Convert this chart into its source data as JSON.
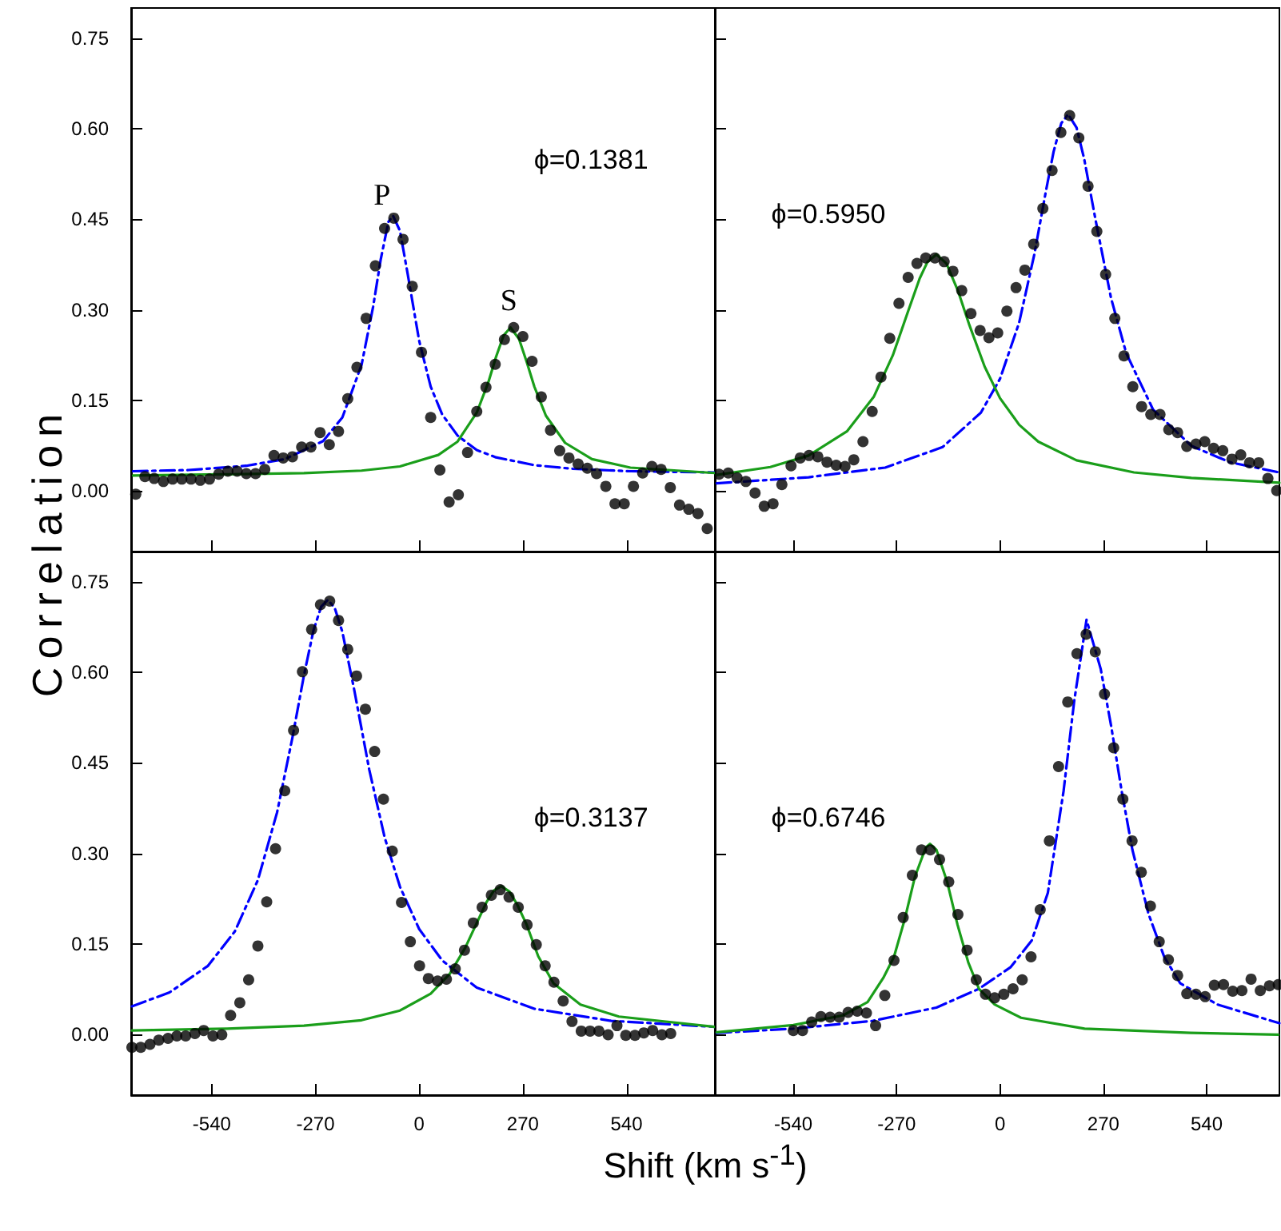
{
  "chart_data": [
    {
      "type": "line",
      "ylabel": "Correlation",
      "xlim": [
        -750,
        770
      ],
      "ylim": [
        -0.1,
        0.8
      ],
      "xticks": [
        -540,
        -270,
        0,
        270,
        540
      ],
      "yticks": [
        {
          "value": 0,
          "label": "0.00"
        },
        {
          "value": 0.15,
          "label": "0.15"
        },
        {
          "value": 0.3,
          "label": "0.30"
        },
        {
          "value": 0.45,
          "label": "0.45"
        },
        {
          "value": 0.6,
          "label": "0.60"
        },
        {
          "value": 0.75,
          "label": "0.75"
        }
      ],
      "tick_labels": "y",
      "annotations": [
        "ϕ=0.1381",
        "P",
        "S"
      ],
      "series": [
        {
          "type": "scatter",
          "marker": "circle",
          "color": "#000000",
          "x": [
            -738,
            -714,
            -690,
            -666,
            -642,
            -618,
            -594,
            -570,
            -546,
            -522,
            -498,
            -474,
            -450,
            -426,
            -402,
            -378,
            -354,
            -330,
            -306,
            -282,
            -258,
            -234,
            -210,
            -186,
            -162,
            -138,
            -114,
            -90,
            -66,
            -42,
            -18,
            6,
            30,
            54,
            78,
            102,
            126,
            150,
            174,
            198,
            222,
            246,
            270,
            294,
            318,
            342,
            366,
            390,
            414,
            438,
            462,
            486,
            510,
            534,
            558,
            582,
            606,
            630,
            654,
            678,
            702,
            726,
            750
          ],
          "values": [
            -0.005,
            0.024,
            0.021,
            0.016,
            0.02,
            0.02,
            0.02,
            0.018,
            0.02,
            0.028,
            0.033,
            0.033,
            0.029,
            0.029,
            0.036,
            0.059,
            0.055,
            0.057,
            0.073,
            0.073,
            0.097,
            0.077,
            0.099,
            0.153,
            0.205,
            0.286,
            0.373,
            0.435,
            0.452,
            0.417,
            0.339,
            0.23,
            0.122,
            0.035,
            -0.018,
            -0.006,
            0.064,
            0.132,
            0.172,
            0.21,
            0.251,
            0.271,
            0.256,
            0.215,
            0.156,
            0.101,
            0.067,
            0.055,
            0.045,
            0.038,
            0.029,
            0.008,
            -0.021,
            -0.021,
            0.008,
            0.03,
            0.041,
            0.036,
            0.006,
            -0.023,
            -0.03,
            -0.037,
            -0.062
          ]
        },
        {
          "type": "line",
          "marker": "none",
          "line_style": "dashdot",
          "color": "#0000ff",
          "x": [
            -745,
            -600,
            -450,
            -350,
            -250,
            -200,
            -150,
            -120,
            -100,
            -80,
            -68,
            -50,
            -30,
            0,
            30,
            60,
            100,
            150,
            200,
            300,
            400,
            550,
            770
          ],
          "values": [
            0.033,
            0.035,
            0.042,
            0.053,
            0.083,
            0.122,
            0.209,
            0.305,
            0.384,
            0.446,
            0.456,
            0.431,
            0.36,
            0.249,
            0.173,
            0.127,
            0.092,
            0.068,
            0.056,
            0.043,
            0.037,
            0.033,
            0.031
          ]
        },
        {
          "type": "line",
          "marker": "none",
          "line_style": "solid",
          "color": "#1a9e1a",
          "x": [
            -745,
            -500,
            -300,
            -150,
            -50,
            50,
            100,
            150,
            180,
            200,
            220,
            238,
            260,
            280,
            300,
            330,
            380,
            450,
            550,
            770
          ],
          "values": [
            0.026,
            0.028,
            0.03,
            0.034,
            0.041,
            0.06,
            0.082,
            0.13,
            0.18,
            0.222,
            0.258,
            0.271,
            0.252,
            0.214,
            0.173,
            0.125,
            0.08,
            0.053,
            0.039,
            0.03
          ]
        }
      ]
    },
    {
      "type": "line",
      "xlim": [
        -745,
        730
      ],
      "ylim": [
        -0.1,
        0.8
      ],
      "xticks": [
        -540,
        -270,
        0,
        270,
        540
      ],
      "yticks": [
        {
          "value": 0,
          "label": null
        },
        {
          "value": 0.15,
          "label": null
        },
        {
          "value": 0.3,
          "label": null
        },
        {
          "value": 0.45,
          "label": null
        },
        {
          "value": 0.6,
          "label": null
        },
        {
          "value": 0.75,
          "label": null
        }
      ],
      "tick_labels": false,
      "annotations": [
        "ϕ=0.5950"
      ],
      "series": [
        {
          "type": "scatter",
          "marker": "circle",
          "color": "#000000",
          "x": [
            -734,
            -710,
            -687,
            -664,
            -640,
            -616,
            -593,
            -570,
            -546,
            -522,
            -499,
            -476,
            -452,
            -428,
            -405,
            -382,
            -358,
            -334,
            -311,
            -288,
            -264,
            -240,
            -217,
            -194,
            -170,
            -146,
            -123,
            -100,
            -76,
            -52,
            -29,
            -6,
            18,
            42,
            65,
            88,
            112,
            136,
            159,
            182,
            206,
            230,
            253,
            276,
            300,
            324,
            347,
            370,
            394,
            418,
            441,
            464,
            488,
            512,
            535,
            558,
            582,
            606,
            629,
            652,
            676,
            700,
            723
          ],
          "values": [
            0.028,
            0.03,
            0.022,
            0.016,
            -0.003,
            -0.025,
            -0.021,
            0.011,
            0.042,
            0.055,
            0.059,
            0.057,
            0.048,
            0.043,
            0.041,
            0.052,
            0.082,
            0.132,
            0.189,
            0.253,
            0.311,
            0.354,
            0.377,
            0.386,
            0.386,
            0.38,
            0.364,
            0.332,
            0.294,
            0.266,
            0.254,
            0.262,
            0.298,
            0.337,
            0.366,
            0.409,
            0.468,
            0.531,
            0.594,
            0.622,
            0.585,
            0.505,
            0.43,
            0.359,
            0.286,
            0.224,
            0.173,
            0.14,
            0.127,
            0.127,
            0.102,
            0.097,
            0.074,
            0.078,
            0.082,
            0.071,
            0.067,
            0.053,
            0.06,
            0.047,
            0.047,
            0.021,
            0.001
          ]
        },
        {
          "type": "line",
          "marker": "none",
          "line_style": "dashdot",
          "color": "#0000ff",
          "x": [
            -740,
            -500,
            -300,
            -150,
            -50,
            0,
            50,
            90,
            120,
            140,
            160,
            178,
            200,
            220,
            250,
            290,
            330,
            400,
            500,
            600,
            730
          ],
          "values": [
            0.013,
            0.023,
            0.039,
            0.073,
            0.13,
            0.186,
            0.279,
            0.393,
            0.497,
            0.562,
            0.609,
            0.624,
            0.602,
            0.55,
            0.448,
            0.32,
            0.228,
            0.135,
            0.075,
            0.048,
            0.031
          ]
        },
        {
          "type": "line",
          "marker": "none",
          "line_style": "solid",
          "color": "#1a9e1a",
          "x": [
            -740,
            -600,
            -500,
            -400,
            -330,
            -280,
            -240,
            -210,
            -190,
            -166,
            -140,
            -110,
            -80,
            -40,
            0,
            50,
            100,
            200,
            350,
            500,
            730
          ],
          "values": [
            0.027,
            0.04,
            0.059,
            0.099,
            0.156,
            0.225,
            0.298,
            0.352,
            0.379,
            0.392,
            0.377,
            0.332,
            0.275,
            0.206,
            0.154,
            0.11,
            0.082,
            0.051,
            0.031,
            0.022,
            0.014
          ]
        }
      ]
    },
    {
      "type": "line",
      "xlabel": "Shift (km s$^{-1}$)",
      "xlim": [
        -750,
        770
      ],
      "ylim": [
        -0.1,
        0.8
      ],
      "xticks": [
        -540,
        -270,
        0,
        270,
        540
      ],
      "yticks": [
        {
          "value": 0,
          "label": "0.00"
        },
        {
          "value": 0.15,
          "label": "0.15"
        },
        {
          "value": 0.3,
          "label": "0.30"
        },
        {
          "value": 0.45,
          "label": "0.45"
        },
        {
          "value": 0.6,
          "label": "0.60"
        },
        {
          "value": 0.75,
          "label": "0.75"
        }
      ],
      "annotations": [
        "ϕ=0.3137"
      ],
      "series": [
        {
          "type": "scatter",
          "marker": "circle",
          "color": "#000000",
          "x": [
            -748,
            -725,
            -701,
            -678,
            -654,
            -631,
            -608,
            -584,
            -561,
            -537,
            -514,
            -491,
            -467,
            -444,
            -420,
            -397,
            -374,
            -350,
            -327,
            -304,
            -280,
            -257,
            -233,
            -210,
            -186,
            -163,
            -140,
            -116,
            -93,
            -70,
            -46,
            -23,
            1,
            24,
            48,
            71,
            94,
            118,
            141,
            164,
            188,
            211,
            234,
            258,
            281,
            305,
            328,
            351,
            375,
            398,
            422,
            445,
            468,
            492,
            515,
            538,
            562,
            585,
            608,
            632,
            655
          ],
          "values": [
            -0.021,
            -0.021,
            -0.016,
            -0.009,
            -0.006,
            -0.002,
            -0.002,
            0.002,
            0.007,
            -0.002,
            0.0,
            0.032,
            0.053,
            0.091,
            0.147,
            0.22,
            0.308,
            0.404,
            0.504,
            0.601,
            0.671,
            0.712,
            0.718,
            0.686,
            0.638,
            0.594,
            0.539,
            0.469,
            0.39,
            0.304,
            0.219,
            0.154,
            0.114,
            0.093,
            0.089,
            0.092,
            0.109,
            0.14,
            0.185,
            0.211,
            0.231,
            0.24,
            0.228,
            0.211,
            0.182,
            0.149,
            0.114,
            0.087,
            0.056,
            0.022,
            0.006,
            0.006,
            0.006,
            0.0,
            0.015,
            -0.001,
            -0.001,
            0.003,
            0.007,
            0.0,
            0.002
          ]
        },
        {
          "type": "line",
          "marker": "none",
          "line_style": "dashdot",
          "color": "#0000ff",
          "x": [
            -748,
            -650,
            -550,
            -480,
            -420,
            -370,
            -330,
            -300,
            -275,
            -255,
            -238,
            -220,
            -200,
            -170,
            -130,
            -90,
            -50,
            0,
            60,
            150,
            300,
            500,
            770
          ],
          "values": [
            0.047,
            0.07,
            0.114,
            0.171,
            0.256,
            0.368,
            0.492,
            0.595,
            0.67,
            0.709,
            0.72,
            0.707,
            0.667,
            0.574,
            0.439,
            0.327,
            0.245,
            0.175,
            0.123,
            0.078,
            0.043,
            0.023,
            0.013
          ]
        },
        {
          "type": "line",
          "marker": "none",
          "line_style": "solid",
          "color": "#1a9e1a",
          "x": [
            -748,
            -500,
            -300,
            -150,
            -50,
            30,
            80,
            120,
            150,
            175,
            195,
            214,
            235,
            255,
            280,
            310,
            350,
            420,
            520,
            770
          ],
          "values": [
            0.007,
            0.01,
            0.015,
            0.024,
            0.04,
            0.068,
            0.101,
            0.144,
            0.185,
            0.219,
            0.239,
            0.246,
            0.237,
            0.216,
            0.182,
            0.13,
            0.085,
            0.05,
            0.03,
            0.013
          ]
        }
      ]
    },
    {
      "type": "line",
      "xlim": [
        -745,
        730
      ],
      "ylim": [
        -0.1,
        0.8
      ],
      "xticks": [
        -540,
        -270,
        0,
        270,
        540
      ],
      "yticks": [
        {
          "value": 0,
          "label": null
        },
        {
          "value": 0.15,
          "label": null
        },
        {
          "value": 0.3,
          "label": null
        },
        {
          "value": 0.45,
          "label": null
        },
        {
          "value": 0.6,
          "label": null
        },
        {
          "value": 0.75,
          "label": null
        }
      ],
      "tick_labels": "x",
      "annotations": [
        "ϕ=0.6746"
      ],
      "series": [
        {
          "type": "scatter",
          "marker": "circle",
          "color": "#000000",
          "x": [
            -540,
            -516,
            -492,
            -468,
            -444,
            -420,
            -397,
            -373,
            -349,
            -325,
            -301,
            -277,
            -253,
            -229,
            -205,
            -182,
            -158,
            -134,
            -110,
            -86,
            -62,
            -38,
            -14,
            10,
            34,
            58,
            81,
            105,
            129,
            153,
            177,
            201,
            225,
            249,
            273,
            297,
            321,
            345,
            369,
            393,
            416,
            440,
            464,
            488,
            512,
            536,
            560,
            584,
            608,
            632,
            656,
            680,
            704,
            727
          ],
          "values": [
            0.007,
            0.007,
            0.021,
            0.03,
            0.029,
            0.029,
            0.037,
            0.039,
            0.036,
            0.015,
            0.065,
            0.123,
            0.194,
            0.264,
            0.306,
            0.306,
            0.29,
            0.253,
            0.199,
            0.14,
            0.091,
            0.067,
            0.061,
            0.067,
            0.076,
            0.091,
            0.129,
            0.207,
            0.321,
            0.444,
            0.551,
            0.631,
            0.663,
            0.634,
            0.564,
            0.475,
            0.39,
            0.321,
            0.269,
            0.213,
            0.154,
            0.124,
            0.098,
            0.068,
            0.067,
            0.063,
            0.082,
            0.083,
            0.072,
            0.073,
            0.092,
            0.073,
            0.081,
            0.083
          ]
        },
        {
          "type": "line",
          "marker": "none",
          "line_style": "dashdot",
          "color": "#0000ff",
          "x": [
            -740,
            -540,
            -332,
            -166,
            -55,
            28,
            83,
            125,
            166,
            194,
            226,
            263,
            291,
            318,
            346,
            388,
            429,
            471,
            568,
            730
          ],
          "values": [
            0.003,
            0.01,
            0.023,
            0.045,
            0.076,
            0.112,
            0.156,
            0.235,
            0.403,
            0.553,
            0.687,
            0.606,
            0.509,
            0.403,
            0.306,
            0.2,
            0.129,
            0.085,
            0.05,
            0.019
          ]
        },
        {
          "type": "line",
          "marker": "none",
          "line_style": "solid",
          "color": "#1a9e1a",
          "x": [
            -740,
            -540,
            -410,
            -346,
            -305,
            -277,
            -249,
            -222,
            -194,
            -183,
            -166,
            -138,
            -111,
            -83,
            -55,
            -14,
            55,
            221,
            498,
            727
          ],
          "values": [
            0.004,
            0.016,
            0.032,
            0.054,
            0.094,
            0.129,
            0.191,
            0.262,
            0.31,
            0.316,
            0.306,
            0.253,
            0.182,
            0.12,
            0.076,
            0.05,
            0.028,
            0.01,
            0.003,
            0.0
          ]
        }
      ]
    }
  ]
}
